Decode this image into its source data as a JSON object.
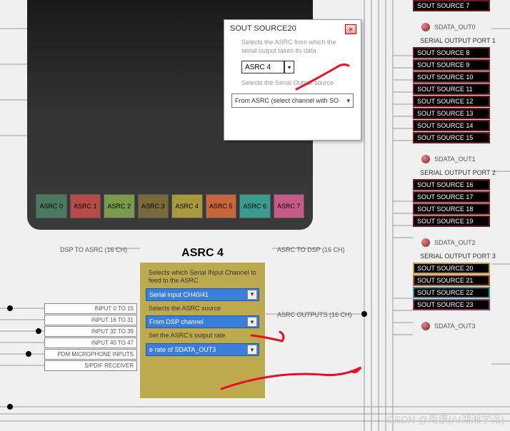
{
  "popup": {
    "title": "SOUT SOURCE20",
    "hint1": "Selects the ASRC from which the serial output takes its data",
    "select1_value": "ASRC 4",
    "hint2": "Selects the Serial Output source",
    "select2_value": "From ASRC (select channel with SO",
    "close": "✕"
  },
  "asrc_chips": [
    {
      "label": "ASRC 0",
      "color": "#4a7a5e"
    },
    {
      "label": "ASRC 1",
      "color": "#b84a4a"
    },
    {
      "label": "ASRC 2",
      "color": "#7a9a4a"
    },
    {
      "label": "ASRC 3",
      "color": "#7a6a3a"
    },
    {
      "label": "ASRC 4",
      "color": "#a89a3a"
    },
    {
      "label": "ASRC 5",
      "color": "#c8663a"
    },
    {
      "label": "ASRC 6",
      "color": "#3a9a8e"
    },
    {
      "label": "ASRC 7",
      "color": "#c85a8a"
    }
  ],
  "asrc4": {
    "title": "ASRC 4",
    "hint1": "Selects which Serial INput Channel to feed to the ASRC",
    "select1": "Serial input CH40/41",
    "hint2": "Selects the ASRC source",
    "select2": "From DSP channel",
    "hint3": "Set the ASRC's output rate",
    "select3": "e rate of SDATA_OUT3"
  },
  "labels": {
    "dsp_to_asrc": "DSP TO ASRC (16 CH)",
    "asrc_to_dsp": "ASRC TO DSP (16 CH)",
    "asrc_outputs": "ASRC OUTPUTS (16 CH)"
  },
  "left_inputs": [
    "INPUT 0 TO 15",
    "INPUT 16 TO 31",
    "INPUT 32 TO 39",
    "INPUT 40 TO 47",
    "PDM MICROPHONE INPUTS",
    "S/PDIF RECEIVER"
  ],
  "right": {
    "sout7": "SOUT SOURCE 7",
    "sdata_out0": "SDATA_OUT0",
    "port1_title": "SERIAL OUTPUT PORT 1",
    "port1": [
      "SOUT SOURCE 8",
      "SOUT SOURCE 9",
      "SOUT SOURCE 10",
      "SOUT SOURCE 11",
      "SOUT SOURCE 12",
      "SOUT SOURCE 13",
      "SOUT SOURCE 14",
      "SOUT SOURCE 15"
    ],
    "sdata_out1": "SDATA_OUT1",
    "port2_title": "SERIAL OUTPUT PORT 2",
    "port2": [
      "SOUT SOURCE 16",
      "SOUT SOURCE 17",
      "SOUT SOURCE 18",
      "SOUT SOURCE 19"
    ],
    "sdata_out2": "SDATA_OUT2",
    "port3_title": "SERIAL OUTPUT PORT 3",
    "port3": [
      "SOUT SOURCE 20",
      "SOUT SOURCE 21",
      "SOUT SOURCE 22",
      "SOUT SOURCE 23"
    ],
    "sdata_out3": "SDATA_OUT3"
  },
  "watermark": "CSDN @周康(AI湖湘学派)",
  "annotation_color": "#e81123"
}
